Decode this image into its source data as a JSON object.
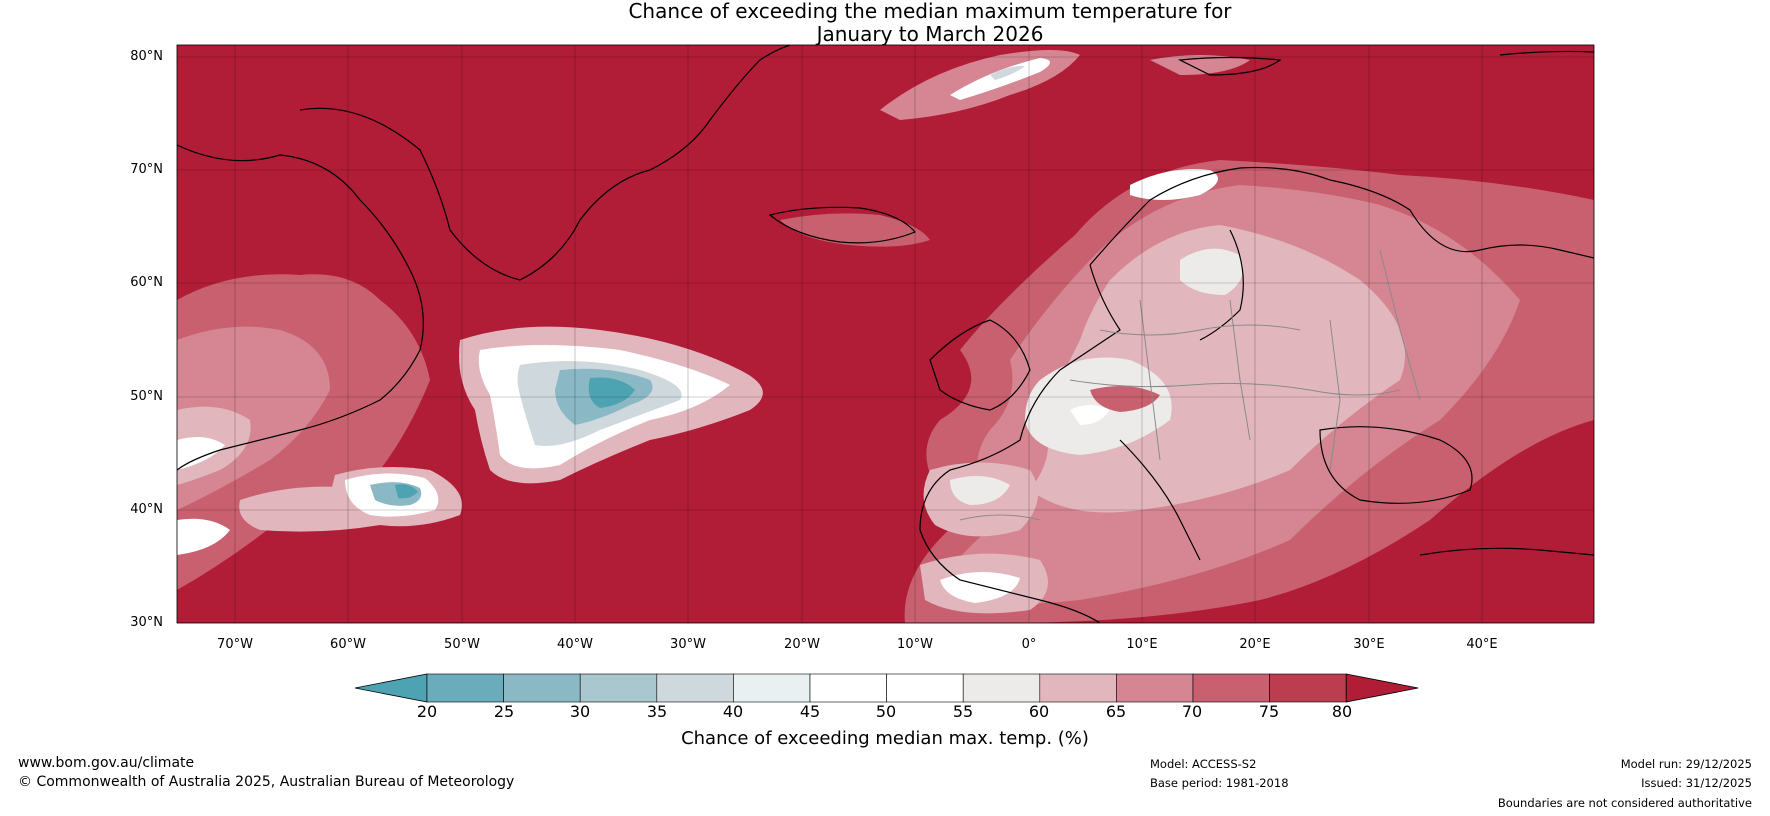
{
  "title": {
    "line1": "Chance of exceeding the median maximum temperature for",
    "line2": "January to March 2026"
  },
  "map": {
    "latitude_labels": [
      "80°N",
      "70°N",
      "60°N",
      "50°N",
      "40°N",
      "30°N"
    ],
    "longitude_labels": [
      "70°W",
      "60°W",
      "50°W",
      "40°W",
      "30°W",
      "20°W",
      "10°W",
      "0°",
      "10°E",
      "20°E",
      "30°E",
      "40°E"
    ],
    "base_color": "#b11c37",
    "coastline_color": "#000000",
    "border_color": "#8a8a8a"
  },
  "colorbar": {
    "ticks": [
      "20",
      "25",
      "30",
      "35",
      "40",
      "45",
      "50",
      "55",
      "60",
      "65",
      "70",
      "75",
      "80"
    ],
    "colors": [
      "#4ea3b3",
      "#6aacbb",
      "#8ab8c4",
      "#aac7cf",
      "#cfd8dc",
      "#e9f0f1",
      "#ffffff",
      "#ffffff",
      "#edeaea",
      "#e2b6bd",
      "#d58692",
      "#c9606f",
      "#bc3d50",
      "#b11c37"
    ],
    "label": "Chance of exceeding median max. temp. (%)"
  },
  "footer": {
    "website": "www.bom.gov.au/climate",
    "copyright": "© Commonwealth of Australia 2025, Australian Bureau of Meteorology",
    "model": "Model: ACCESS-S2",
    "base_period": "Base period: 1981-2018",
    "model_run": "Model run: 29/12/2025",
    "issued": "Issued: 31/12/2025",
    "disclaimer": "Boundaries are not considered authoritative"
  }
}
